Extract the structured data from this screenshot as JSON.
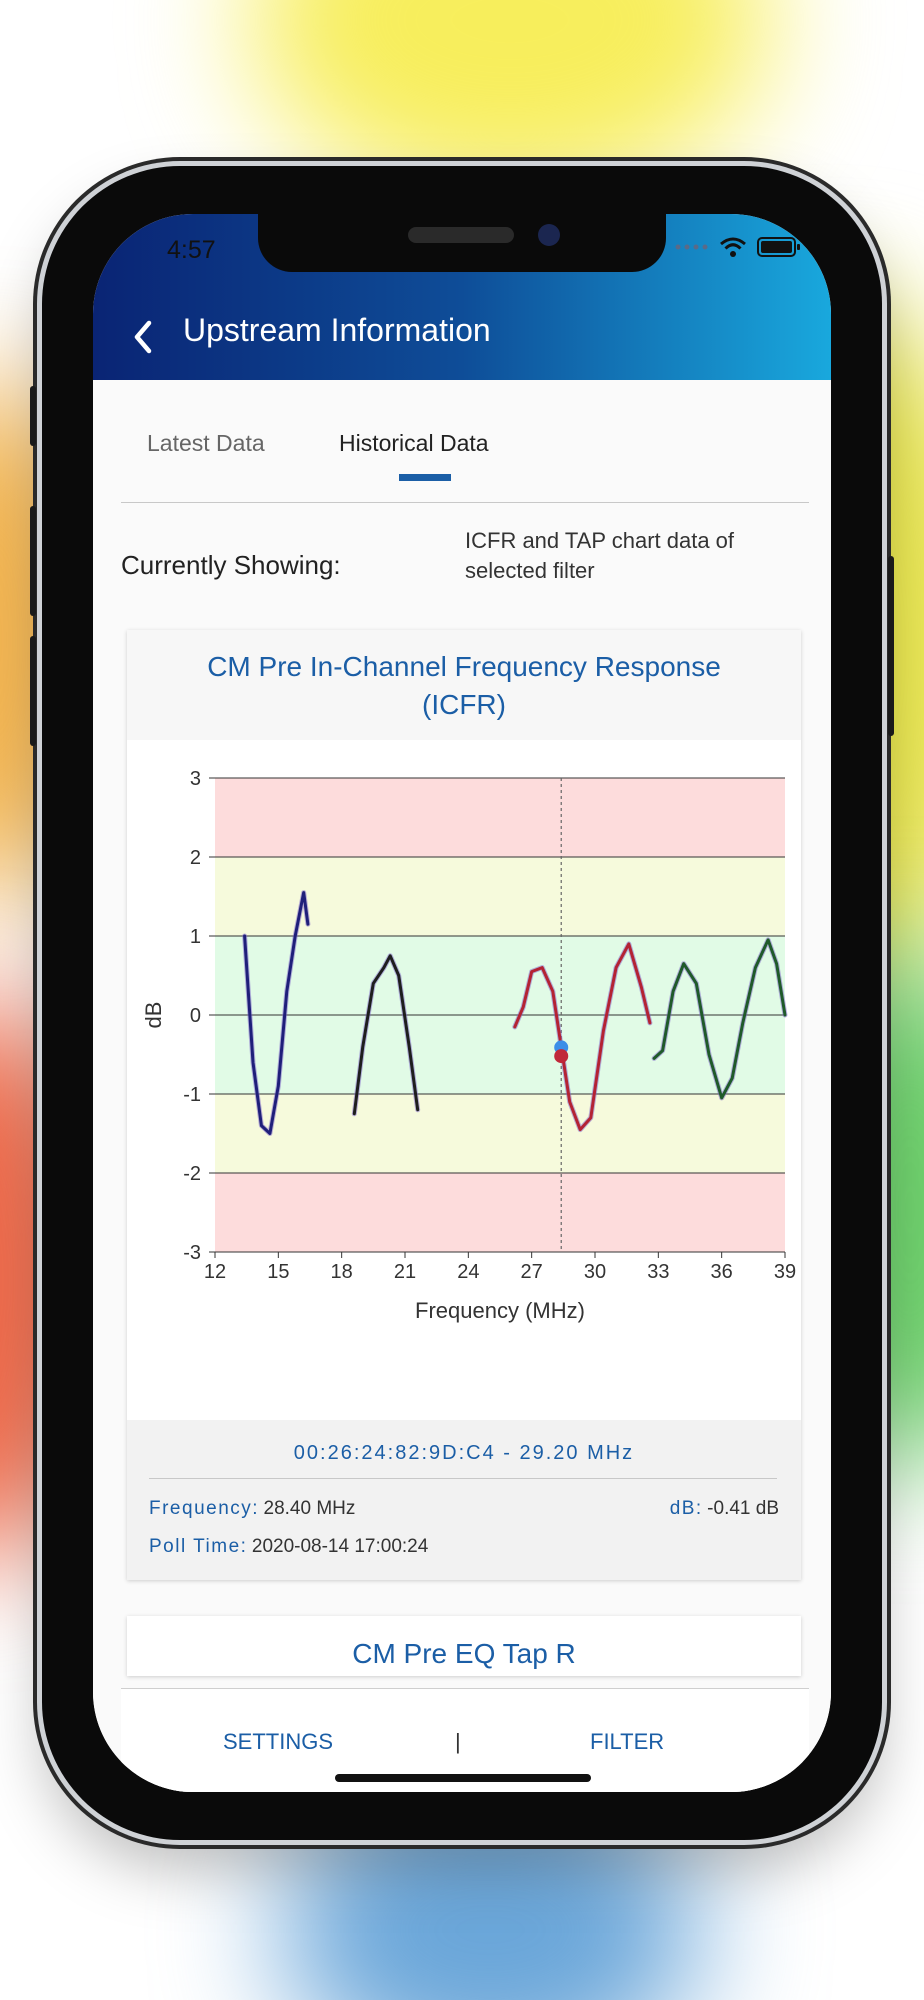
{
  "status_bar": {
    "time": "4:57"
  },
  "header": {
    "title": "Upstream Information",
    "back_icon": "chevron-left-icon"
  },
  "tabs": [
    {
      "label": "Latest Data",
      "active": false
    },
    {
      "label": "Historical Data",
      "active": true
    }
  ],
  "showing": {
    "label": "Currently Showing:",
    "text_line1": "ICFR and TAP chart data of",
    "text_line2": "selected filter"
  },
  "icfr_card": {
    "title_line1": "CM Pre In-Channel Frequency Response",
    "title_line2": "(ICFR)",
    "selection": {
      "mac_freq": "00:26:24:82:9D:C4 - 29.20 MHz",
      "frequency_label": "Frequency:",
      "frequency_value": "28.40 MHz",
      "db_label": "dB:",
      "db_value": "-0.41 dB",
      "poll_label": "Poll Time:",
      "poll_value": "2020-08-14 17:00:24"
    }
  },
  "chart_data": {
    "type": "line",
    "title": "",
    "xlabel": "Frequency (MHz)",
    "ylabel": "dB",
    "xlim": [
      12,
      39
    ],
    "ylim": [
      -3,
      3
    ],
    "xticks": [
      "12",
      "15",
      "18",
      "21",
      "24",
      "27",
      "30",
      "33",
      "36",
      "39"
    ],
    "yticks": [
      "3",
      "2",
      "1",
      "0",
      "-1",
      "-2",
      "-3"
    ],
    "bands": [
      {
        "from": 2,
        "to": 3,
        "color": "#fddcdc"
      },
      {
        "from": 1,
        "to": 2,
        "color": "#f6fadc"
      },
      {
        "from": -1,
        "to": 1,
        "color": "#e1fbe6"
      },
      {
        "from": -2,
        "to": -1,
        "color": "#f6fadc"
      },
      {
        "from": -3,
        "to": -2,
        "color": "#fddcdc"
      }
    ],
    "cursor_x": 28.4,
    "markers": [
      {
        "x": 28.4,
        "y": -0.41,
        "color": "#3b8ee8"
      },
      {
        "x": 28.4,
        "y": -0.52,
        "color": "#c0283a"
      }
    ],
    "series": [
      {
        "color": "#1f1f7a",
        "x": [
          13.4,
          13.8,
          14.2,
          14.6,
          15.0,
          15.4,
          15.8,
          16.2,
          16.4
        ],
        "y": [
          1.0,
          -0.6,
          -1.4,
          -1.5,
          -0.9,
          0.3,
          1.0,
          1.55,
          1.15
        ]
      },
      {
        "color": "#1e1e1e",
        "x": [
          18.6,
          19.0,
          19.5,
          20.0,
          20.3,
          20.7,
          21.2,
          21.6
        ],
        "y": [
          -1.25,
          -0.4,
          0.4,
          0.6,
          0.75,
          0.5,
          -0.4,
          -1.2
        ]
      },
      {
        "color": "#b42333",
        "x": [
          26.2,
          26.6,
          27.0,
          27.5,
          28.0,
          28.4,
          28.8,
          29.3,
          29.8,
          30.4,
          31.0,
          31.6,
          32.2,
          32.6
        ],
        "y": [
          -0.15,
          0.1,
          0.55,
          0.6,
          0.3,
          -0.4,
          -1.1,
          -1.45,
          -1.3,
          -0.2,
          0.6,
          0.9,
          0.35,
          -0.1
        ]
      },
      {
        "color": "#1f5a2a",
        "x": [
          32.8,
          33.2,
          33.7,
          34.2,
          34.8,
          35.4,
          36.0,
          36.5,
          37.0,
          37.6,
          38.2,
          38.6,
          39.0
        ],
        "y": [
          -0.55,
          -0.45,
          0.3,
          0.65,
          0.4,
          -0.5,
          -1.05,
          -0.8,
          -0.1,
          0.6,
          0.95,
          0.65,
          0.0
        ]
      }
    ]
  },
  "tap_card": {
    "title": "CM Pre EQ Tap R"
  },
  "bottom_bar": {
    "settings_label": "SETTINGS",
    "separator": "|",
    "filter_label": "FILTER"
  }
}
